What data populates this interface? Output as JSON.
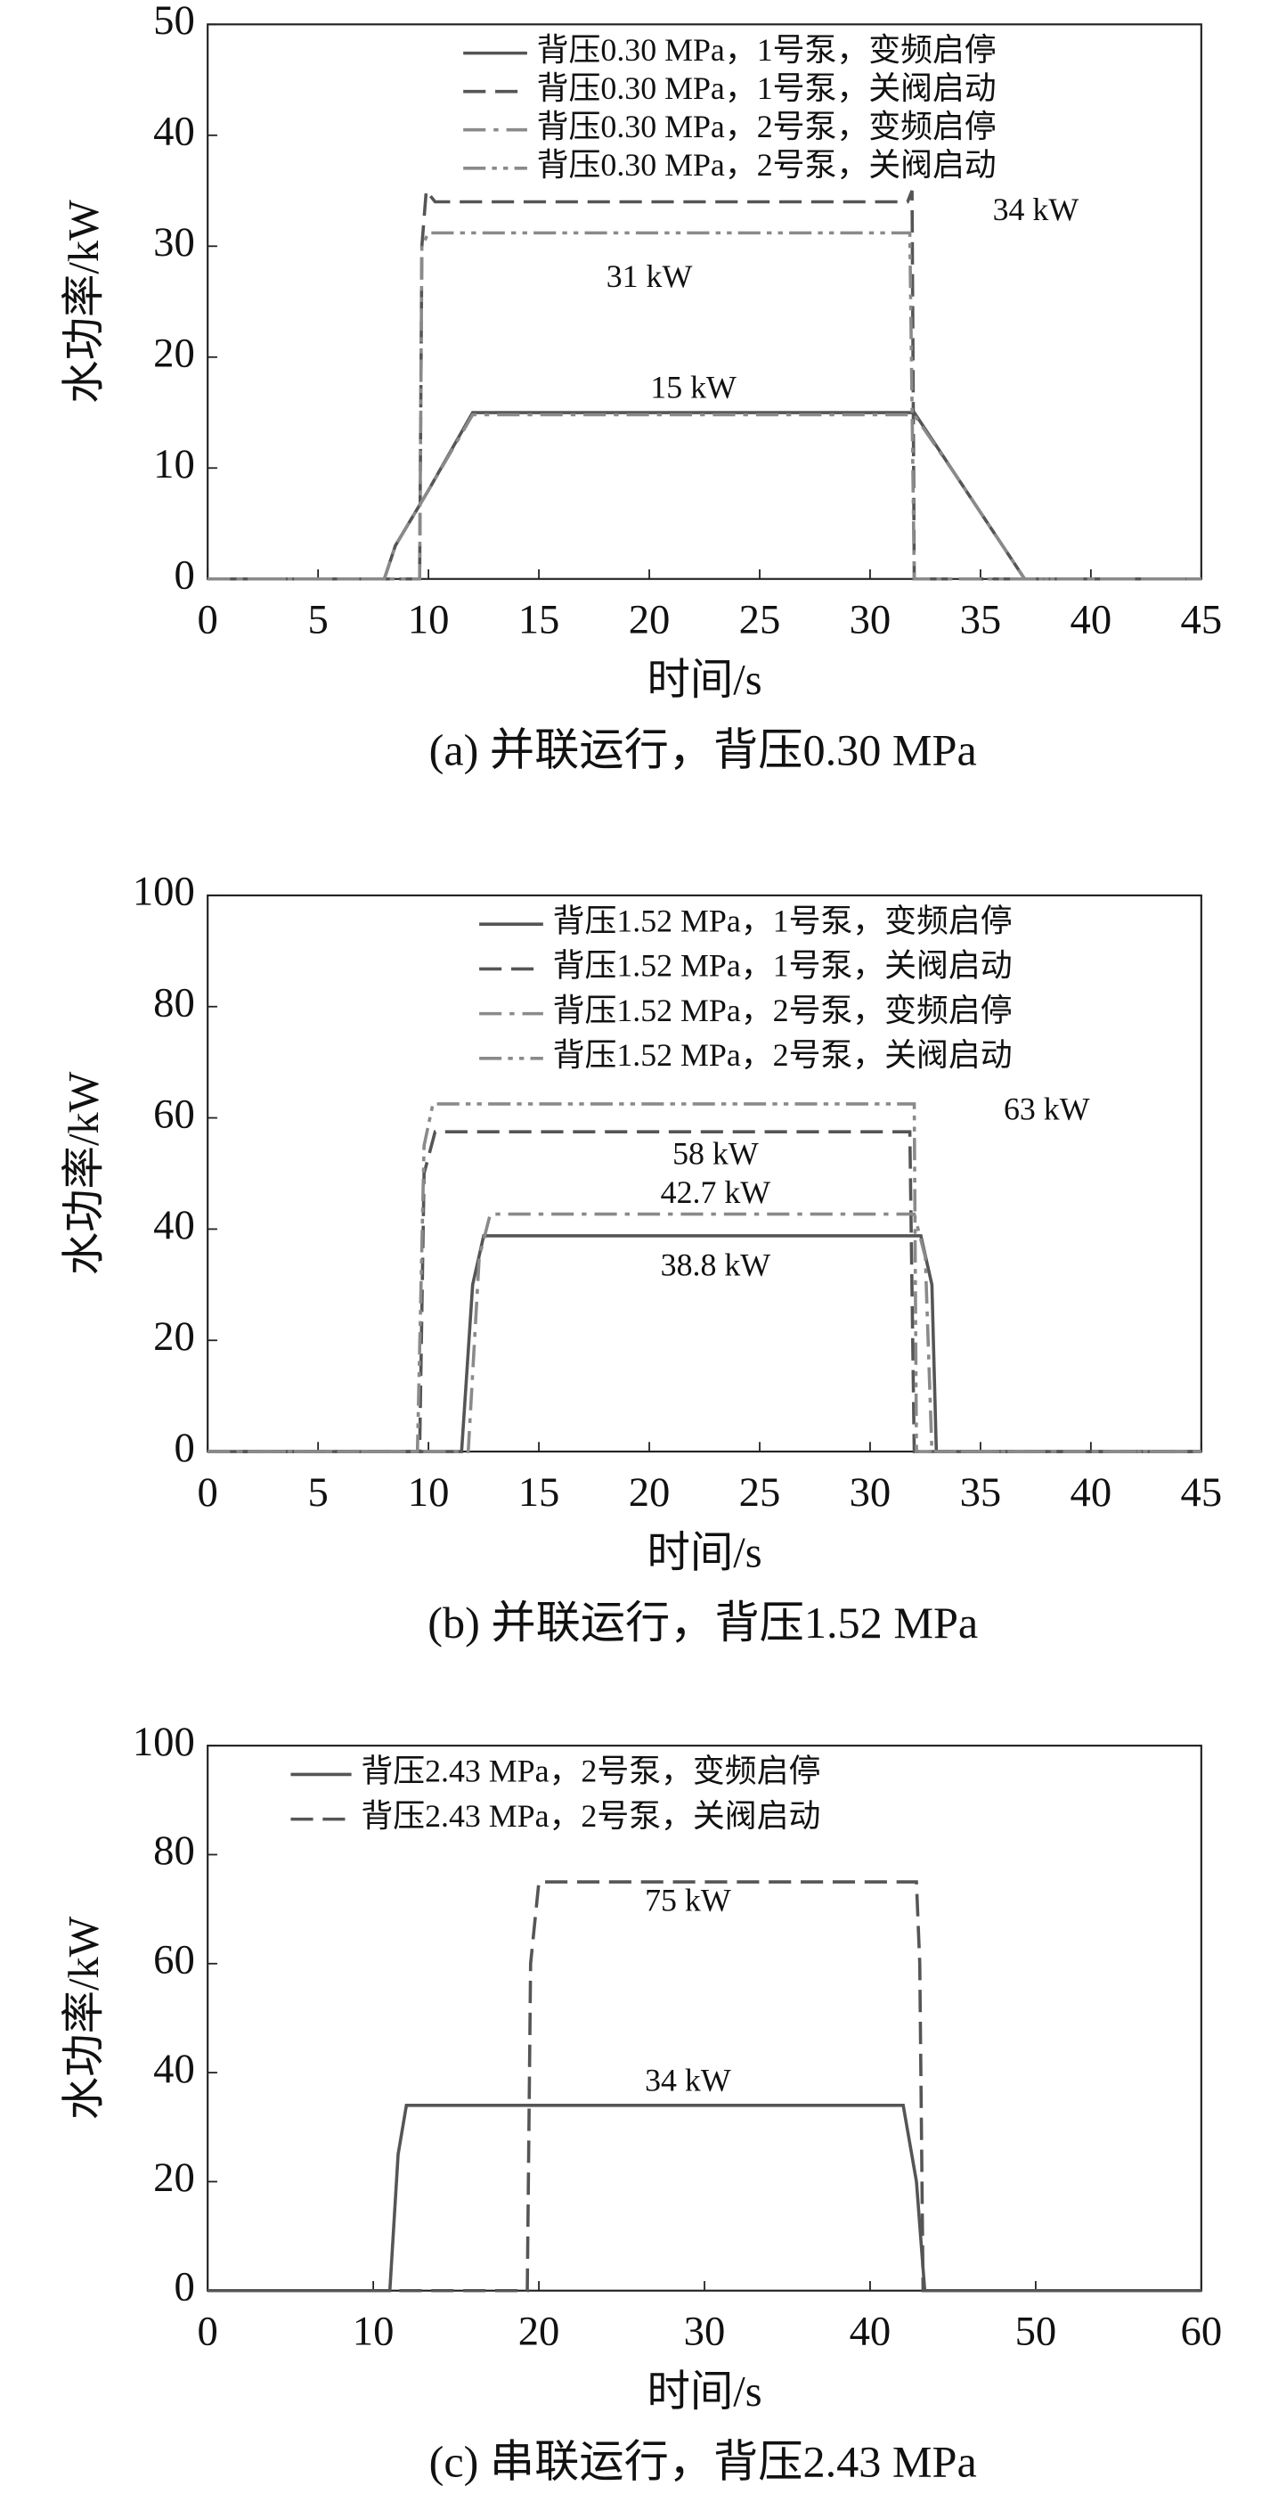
{
  "chart_data": [
    {
      "type": "line",
      "caption": "(a) 并联运行，背压0.30 MPa",
      "x_label": "时间/s",
      "y_label": "水功率/kW",
      "xlim": [
        0,
        45
      ],
      "ylim": [
        0,
        50
      ],
      "xticks": [
        0,
        5,
        10,
        15,
        20,
        25,
        30,
        35,
        40,
        45
      ],
      "yticks": [
        0,
        10,
        20,
        30,
        40,
        50
      ],
      "legend": "upper center",
      "series": [
        {
          "name": "背压0.30 MPa，1号泵，变频启停",
          "color": "#555555",
          "line_style": "solid",
          "x": [
            0,
            8,
            8.5,
            10,
            12,
            32,
            34,
            37,
            45
          ],
          "values": [
            0,
            0,
            3,
            8,
            15,
            15,
            9,
            0,
            0
          ]
        },
        {
          "name": "背压0.30 MPa，1号泵，关阀启动",
          "color": "#555555",
          "line_style": "dashed",
          "x": [
            0,
            9.6,
            9.7,
            9.9,
            10.3,
            31.7,
            31.9,
            32,
            45
          ],
          "values": [
            0,
            0,
            30,
            35,
            34,
            34,
            35,
            0,
            0
          ]
        },
        {
          "name": "背压0.30 MPa，2号泵，变频启停",
          "color": "#8a8a8a",
          "line_style": "dashdot",
          "x": [
            0,
            8,
            8.5,
            10,
            12,
            32,
            34,
            37,
            45
          ],
          "values": [
            0,
            0,
            3,
            8,
            14.8,
            14.8,
            9,
            0,
            0
          ]
        },
        {
          "name": "背压0.30 MPa，2号泵，关阀启动",
          "color": "#8a8a8a",
          "line_style": "dashdotdot",
          "x": [
            0,
            9.6,
            9.7,
            10,
            31.8,
            32,
            45
          ],
          "values": [
            0,
            0,
            30,
            31.2,
            31.2,
            0,
            0
          ]
        }
      ],
      "annotations": [
        "34 kW",
        "31 kW",
        "15 kW"
      ]
    },
    {
      "type": "line",
      "caption": "(b) 并联运行，背压1.52 MPa",
      "x_label": "时间/s",
      "y_label": "水功率/kW",
      "xlim": [
        0,
        45
      ],
      "ylim": [
        0,
        100
      ],
      "xticks": [
        0,
        5,
        10,
        15,
        20,
        25,
        30,
        35,
        40,
        45
      ],
      "yticks": [
        0,
        20,
        40,
        60,
        80,
        100
      ],
      "legend": "upper center",
      "series": [
        {
          "name": "背压1.52 MPa，1号泵，变频启停",
          "color": "#555555",
          "line_style": "solid",
          "x": [
            0,
            11.5,
            12,
            12.5,
            32.3,
            32.8,
            33,
            45
          ],
          "values": [
            0,
            0,
            30,
            38.8,
            38.8,
            30,
            0,
            0
          ]
        },
        {
          "name": "背压1.52 MPa，1号泵，关阀启动",
          "color": "#555555",
          "line_style": "dashed",
          "x": [
            0,
            9.6,
            9.8,
            10.3,
            31.8,
            32,
            45
          ],
          "values": [
            0,
            0,
            50,
            57.5,
            57.5,
            0,
            0
          ]
        },
        {
          "name": "背压1.52 MPa，2号泵，变频启停",
          "color": "#8a8a8a",
          "line_style": "dashdot",
          "x": [
            0,
            11.8,
            12.3,
            12.8,
            32,
            32.5,
            32.8,
            45
          ],
          "values": [
            0,
            0,
            35,
            42.7,
            42.7,
            35,
            0,
            0
          ]
        },
        {
          "name": "背压1.52 MPa，2号泵，关阀启动",
          "color": "#8a8a8a",
          "line_style": "dashdotdot",
          "x": [
            0,
            9.5,
            9.8,
            10.2,
            32,
            32.1,
            45
          ],
          "values": [
            0,
            0,
            55,
            62.5,
            62.5,
            0,
            0
          ]
        }
      ],
      "annotations": [
        "63 kW",
        "58 kW",
        "42.7 kW",
        "38.8 kW"
      ]
    },
    {
      "type": "line",
      "caption": "(c) 串联运行，背压2.43 MPa",
      "x_label": "时间/s",
      "y_label": "水功率/kW",
      "xlim": [
        0,
        60
      ],
      "ylim": [
        0,
        100
      ],
      "xticks": [
        0,
        10,
        20,
        30,
        40,
        50,
        60
      ],
      "yticks": [
        0,
        20,
        40,
        60,
        80,
        100
      ],
      "legend": "upper left",
      "series": [
        {
          "name": "背压2.43 MPa，2号泵，变频启停",
          "color": "#555555",
          "line_style": "solid",
          "x": [
            0,
            11,
            11.5,
            12,
            42,
            42.8,
            43.3,
            60
          ],
          "values": [
            0,
            0,
            25,
            34,
            34,
            20,
            0,
            0
          ]
        },
        {
          "name": "背压2.43 MPa，2号泵，关阀启动",
          "color": "#555555",
          "line_style": "dashed",
          "x": [
            0,
            19.3,
            19.5,
            20,
            42.8,
            43,
            43.2,
            60
          ],
          "values": [
            0,
            0,
            60,
            75,
            75,
            60,
            0,
            0
          ]
        }
      ],
      "annotations": [
        "75 kW",
        "34 kW"
      ]
    }
  ]
}
